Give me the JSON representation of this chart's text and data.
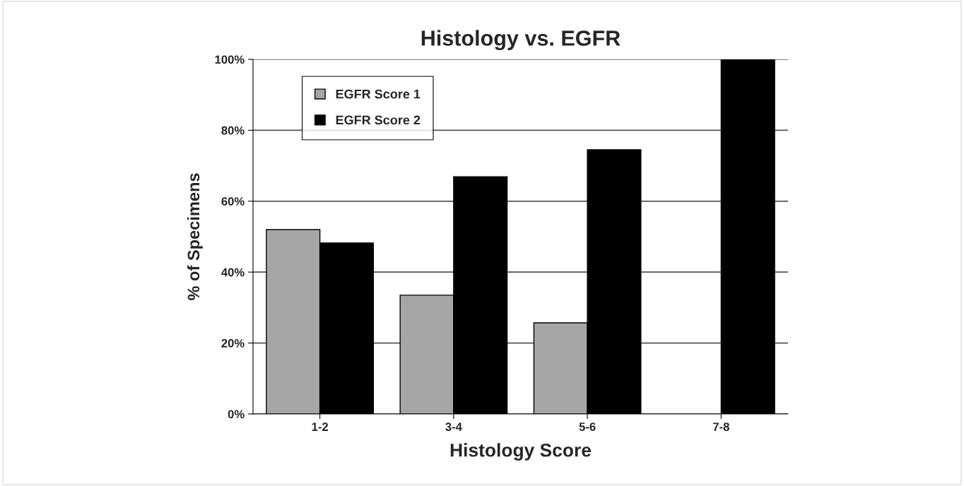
{
  "chart_data": {
    "type": "bar",
    "title": "Histology vs. EGFR",
    "xlabel": "Histology Score",
    "ylabel": "% of Specimens",
    "categories": [
      "1-2",
      "3-4",
      "5-6",
      "7-8"
    ],
    "series": [
      {
        "name": "EGFR Score 1",
        "color": "#a6a6a6",
        "values": [
          52,
          33.5,
          25.7,
          0
        ]
      },
      {
        "name": "EGFR Score 2",
        "color": "#000000",
        "values": [
          48.2,
          66.9,
          74.5,
          100
        ]
      }
    ],
    "ylim": [
      0,
      100
    ],
    "yticks": [
      {
        "value": 0,
        "label": "0%"
      },
      {
        "value": 20,
        "label": "20%"
      },
      {
        "value": 40,
        "label": "40%"
      },
      {
        "value": 60,
        "label": "60%"
      },
      {
        "value": 80,
        "label": "80%"
      },
      {
        "value": 100,
        "label": "100%"
      }
    ],
    "grid": "y",
    "legend": "top left"
  }
}
